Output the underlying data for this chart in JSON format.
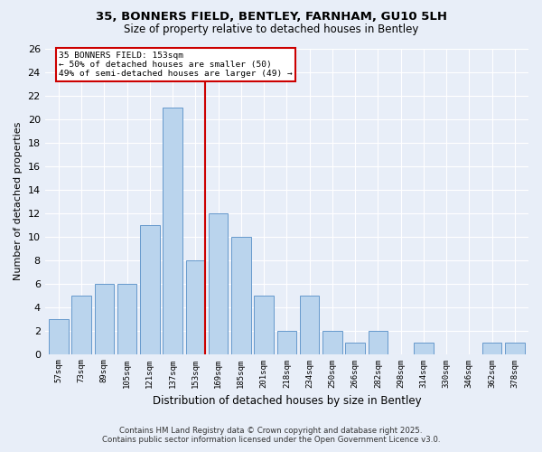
{
  "title1": "35, BONNERS FIELD, BENTLEY, FARNHAM, GU10 5LH",
  "title2": "Size of property relative to detached houses in Bentley",
  "xlabel": "Distribution of detached houses by size in Bentley",
  "ylabel": "Number of detached properties",
  "categories": [
    "57sqm",
    "73sqm",
    "89sqm",
    "105sqm",
    "121sqm",
    "137sqm",
    "153sqm",
    "169sqm",
    "185sqm",
    "201sqm",
    "218sqm",
    "234sqm",
    "250sqm",
    "266sqm",
    "282sqm",
    "298sqm",
    "314sqm",
    "330sqm",
    "346sqm",
    "362sqm",
    "378sqm"
  ],
  "values": [
    3,
    5,
    6,
    6,
    11,
    21,
    8,
    12,
    10,
    5,
    2,
    5,
    2,
    1,
    2,
    0,
    1,
    0,
    0,
    1,
    1
  ],
  "highlight_index": 6,
  "bar_color": "#bad4ed",
  "bar_edge_color": "#6699cc",
  "highlight_line_color": "#cc0000",
  "background_color": "#e8eef8",
  "grid_color": "#ffffff",
  "ylim": [
    0,
    26
  ],
  "yticks": [
    0,
    2,
    4,
    6,
    8,
    10,
    12,
    14,
    16,
    18,
    20,
    22,
    24,
    26
  ],
  "annotation_title": "35 BONNERS FIELD: 153sqm",
  "annotation_line1": "← 50% of detached houses are smaller (50)",
  "annotation_line2": "49% of semi-detached houses are larger (49) →",
  "footer1": "Contains HM Land Registry data © Crown copyright and database right 2025.",
  "footer2": "Contains public sector information licensed under the Open Government Licence v3.0."
}
